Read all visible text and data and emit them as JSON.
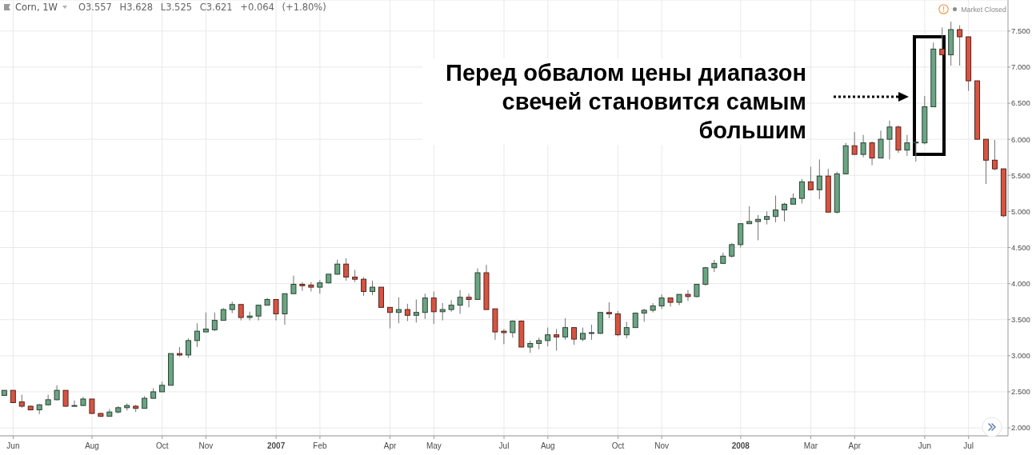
{
  "chart_data": {
    "type": "candlestick",
    "title": "Corn, 1W",
    "annotations": [
      "O3.557 H3.628 L3.525 C3.621 +0.064 (+1.80%)",
      "Market Closed",
      "Перед обвалом цены диапазон свечей становится самым большим"
    ],
    "categories": [
      null,
      "Jun",
      null,
      null,
      null,
      null,
      null,
      null,
      null,
      null,
      "Aug",
      null,
      null,
      null,
      null,
      null,
      null,
      null,
      "Oct",
      null,
      null,
      null,
      null,
      "Nov",
      null,
      null,
      null,
      null,
      null,
      null,
      null,
      "2007",
      null,
      null,
      null,
      null,
      "Feb",
      null,
      null,
      null,
      null,
      null,
      null,
      null,
      "Apr",
      null,
      null,
      null,
      null,
      "May",
      null,
      null,
      null,
      null,
      null,
      null,
      null,
      "Jul",
      null,
      null,
      null,
      null,
      "Aug",
      null,
      null,
      null,
      null,
      null,
      null,
      null,
      "Oct",
      null,
      null,
      null,
      null,
      "Nov",
      null,
      null,
      null,
      null,
      null,
      null,
      null,
      null,
      "2008",
      null,
      null,
      null,
      null,
      null,
      null,
      null,
      "Mar",
      null,
      null,
      null,
      null,
      "Apr",
      null,
      null,
      null,
      null,
      null,
      null,
      null,
      "Jun",
      null,
      null,
      null,
      null,
      "Jul",
      null,
      null,
      null,
      null
    ],
    "ohlc": [
      [
        2.45,
        2.52,
        2.45,
        2.52
      ],
      [
        2.52,
        2.52,
        2.35,
        2.35
      ],
      [
        2.36,
        2.46,
        2.28,
        2.3
      ],
      [
        2.3,
        2.31,
        2.24,
        2.25
      ],
      [
        2.25,
        2.33,
        2.19,
        2.32
      ],
      [
        2.32,
        2.46,
        2.31,
        2.39
      ],
      [
        2.39,
        2.59,
        2.38,
        2.52
      ],
      [
        2.52,
        2.52,
        2.29,
        2.3
      ],
      [
        2.3,
        2.38,
        2.3,
        2.31
      ],
      [
        2.31,
        2.43,
        2.3,
        2.4
      ],
      [
        2.4,
        2.4,
        2.19,
        2.2
      ],
      [
        2.2,
        2.21,
        2.15,
        2.16
      ],
      [
        2.16,
        2.26,
        2.16,
        2.22
      ],
      [
        2.22,
        2.3,
        2.2,
        2.28
      ],
      [
        2.28,
        2.34,
        2.24,
        2.31
      ],
      [
        2.3,
        2.32,
        2.22,
        2.27
      ],
      [
        2.27,
        2.44,
        2.27,
        2.41
      ],
      [
        2.41,
        2.55,
        2.4,
        2.5
      ],
      [
        2.5,
        2.64,
        2.5,
        2.59
      ],
      [
        2.59,
        3.03,
        2.59,
        3.03
      ],
      [
        3.03,
        3.12,
        2.99,
        3.01
      ],
      [
        3.01,
        3.24,
        2.97,
        3.21
      ],
      [
        3.21,
        3.45,
        3.12,
        3.34
      ],
      [
        3.33,
        3.6,
        3.33,
        3.37
      ],
      [
        3.36,
        3.6,
        3.34,
        3.49
      ],
      [
        3.49,
        3.66,
        3.49,
        3.64
      ],
      [
        3.64,
        3.75,
        3.59,
        3.71
      ],
      [
        3.71,
        3.71,
        3.49,
        3.53
      ],
      [
        3.53,
        3.61,
        3.49,
        3.55
      ],
      [
        3.55,
        3.7,
        3.49,
        3.7
      ],
      [
        3.7,
        3.8,
        3.7,
        3.78
      ],
      [
        3.78,
        3.78,
        3.49,
        3.58
      ],
      [
        3.58,
        3.86,
        3.43,
        3.86
      ],
      [
        3.86,
        4.11,
        3.86,
        3.99
      ],
      [
        3.99,
        4.02,
        3.9,
        3.97
      ],
      [
        3.98,
        4.02,
        3.89,
        3.95
      ],
      [
        3.95,
        4.05,
        3.86,
        4.01
      ],
      [
        4.01,
        4.13,
        4.0,
        4.13
      ],
      [
        4.13,
        4.33,
        4.12,
        4.27
      ],
      [
        4.27,
        4.35,
        4.04,
        4.09
      ],
      [
        4.09,
        4.19,
        4.02,
        4.06
      ],
      [
        4.06,
        4.09,
        3.83,
        3.89
      ],
      [
        3.89,
        4.04,
        3.84,
        3.95
      ],
      [
        3.95,
        3.95,
        3.67,
        3.67
      ],
      [
        3.67,
        3.67,
        3.38,
        3.6
      ],
      [
        3.6,
        3.81,
        3.45,
        3.64
      ],
      [
        3.64,
        3.72,
        3.48,
        3.56
      ],
      [
        3.56,
        3.78,
        3.46,
        3.6
      ],
      [
        3.6,
        3.86,
        3.51,
        3.8
      ],
      [
        3.8,
        3.89,
        3.44,
        3.61
      ],
      [
        3.61,
        3.73,
        3.49,
        3.64
      ],
      [
        3.64,
        3.77,
        3.61,
        3.7
      ],
      [
        3.7,
        3.91,
        3.58,
        3.81
      ],
      [
        3.81,
        3.86,
        3.67,
        3.78
      ],
      [
        3.78,
        4.21,
        3.78,
        4.15
      ],
      [
        4.15,
        4.26,
        3.64,
        3.64
      ],
      [
        3.65,
        3.65,
        3.22,
        3.33
      ],
      [
        3.34,
        3.37,
        3.16,
        3.32
      ],
      [
        3.32,
        3.49,
        3.25,
        3.48
      ],
      [
        3.48,
        3.49,
        3.12,
        3.12
      ],
      [
        3.12,
        3.21,
        3.04,
        3.17
      ],
      [
        3.17,
        3.25,
        3.09,
        3.21
      ],
      [
        3.21,
        3.39,
        3.13,
        3.29
      ],
      [
        3.29,
        3.37,
        3.07,
        3.26
      ],
      [
        3.26,
        3.52,
        3.22,
        3.39
      ],
      [
        3.39,
        3.39,
        3.15,
        3.23
      ],
      [
        3.23,
        3.39,
        3.2,
        3.31
      ],
      [
        3.31,
        3.43,
        3.22,
        3.32
      ],
      [
        3.31,
        3.6,
        3.3,
        3.6
      ],
      [
        3.6,
        3.74,
        3.52,
        3.58
      ],
      [
        3.58,
        3.62,
        3.27,
        3.29
      ],
      [
        3.29,
        3.47,
        3.24,
        3.39
      ],
      [
        3.39,
        3.6,
        3.39,
        3.59
      ],
      [
        3.59,
        3.65,
        3.47,
        3.63
      ],
      [
        3.63,
        3.73,
        3.6,
        3.69
      ],
      [
        3.69,
        3.85,
        3.65,
        3.8
      ],
      [
        3.8,
        3.8,
        3.68,
        3.74
      ],
      [
        3.74,
        3.85,
        3.7,
        3.85
      ],
      [
        3.85,
        3.91,
        3.76,
        3.82
      ],
      [
        3.82,
        3.99,
        3.81,
        3.99
      ],
      [
        3.99,
        4.23,
        3.97,
        4.22
      ],
      [
        4.22,
        4.33,
        4.16,
        4.28
      ],
      [
        4.28,
        4.43,
        4.27,
        4.38
      ],
      [
        4.38,
        4.56,
        4.36,
        4.54
      ],
      [
        4.54,
        4.83,
        4.5,
        4.83
      ],
      [
        4.83,
        5.07,
        4.83,
        4.86
      ],
      [
        4.86,
        4.95,
        4.6,
        4.89
      ],
      [
        4.89,
        5.0,
        4.82,
        4.93
      ],
      [
        4.93,
        5.22,
        4.85,
        5.02
      ],
      [
        5.02,
        5.12,
        4.86,
        5.1
      ],
      [
        5.1,
        5.25,
        5.1,
        5.18
      ],
      [
        5.18,
        5.45,
        5.11,
        5.41
      ],
      [
        5.41,
        5.62,
        5.29,
        5.3
      ],
      [
        5.3,
        5.72,
        5.17,
        5.49
      ],
      [
        5.49,
        5.59,
        4.99,
        4.99
      ],
      [
        4.99,
        5.55,
        4.97,
        5.52
      ],
      [
        5.52,
        5.95,
        5.52,
        5.91
      ],
      [
        5.91,
        6.1,
        5.79,
        5.79
      ],
      [
        5.79,
        6.06,
        5.75,
        5.95
      ],
      [
        5.95,
        5.97,
        5.64,
        5.74
      ],
      [
        5.74,
        6.12,
        5.74,
        6.0
      ],
      [
        6.0,
        6.26,
        5.72,
        6.17
      ],
      [
        6.17,
        6.19,
        5.81,
        5.85
      ],
      [
        5.85,
        6.06,
        5.77,
        5.95
      ],
      [
        5.95,
        5.96,
        5.69,
        5.96
      ],
      [
        5.95,
        6.6,
        5.93,
        6.45
      ],
      [
        6.45,
        7.34,
        6.45,
        7.25
      ],
      [
        7.25,
        7.55,
        7.17,
        7.17
      ],
      [
        7.17,
        7.63,
        7.02,
        7.52
      ],
      [
        7.52,
        7.58,
        7.02,
        7.42
      ],
      [
        7.42,
        7.42,
        6.67,
        6.81
      ],
      [
        6.81,
        6.81,
        6.0,
        6.0
      ],
      [
        6.0,
        6.0,
        5.38,
        5.71
      ],
      [
        5.71,
        5.99,
        5.57,
        5.59
      ],
      [
        5.59,
        5.59,
        4.92,
        4.94
      ]
    ],
    "colors": [
      "#6ba583",
      "#d75442",
      "#d75442",
      "#d75442",
      "#6ba583",
      "#6ba583",
      "#6ba583",
      "#d75442",
      "#6ba583",
      "#6ba583",
      "#d75442",
      "#d75442",
      "#6ba583",
      "#6ba583",
      "#6ba583",
      "#d75442",
      "#6ba583",
      "#6ba583",
      "#6ba583",
      "#6ba583",
      "#d75442",
      "#6ba583",
      "#6ba583",
      "#6ba583",
      "#6ba583",
      "#6ba583",
      "#6ba583",
      "#d75442",
      "#6ba583",
      "#6ba583",
      "#6ba583",
      "#d75442",
      "#6ba583",
      "#6ba583",
      "#d75442",
      "#d75442",
      "#6ba583",
      "#6ba583",
      "#6ba583",
      "#d75442",
      "#d75442",
      "#d75442",
      "#6ba583",
      "#d75442",
      "#d75442",
      "#6ba583",
      "#d75442",
      "#6ba583",
      "#6ba583",
      "#d75442",
      "#6ba583",
      "#6ba583",
      "#6ba583",
      "#d75442",
      "#6ba583",
      "#d75442",
      "#d75442",
      "#d75442",
      "#6ba583",
      "#d75442",
      "#6ba583",
      "#6ba583",
      "#6ba583",
      "#d75442",
      "#6ba583",
      "#d75442",
      "#6ba583",
      "#6ba583",
      "#6ba583",
      "#d75442",
      "#d75442",
      "#6ba583",
      "#6ba583",
      "#6ba583",
      "#6ba583",
      "#6ba583",
      "#d75442",
      "#6ba583",
      "#d75442",
      "#6ba583",
      "#6ba583",
      "#6ba583",
      "#6ba583",
      "#6ba583",
      "#6ba583",
      "#6ba583",
      "#6ba583",
      "#6ba583",
      "#6ba583",
      "#6ba583",
      "#6ba583",
      "#6ba583",
      "#d75442",
      "#6ba583",
      "#d75442",
      "#6ba583",
      "#6ba583",
      "#d75442",
      "#6ba583",
      "#d75442",
      "#6ba583",
      "#6ba583",
      "#d75442",
      "#6ba583",
      "#6ba583",
      "#6ba583",
      "#6ba583",
      "#d75442",
      "#6ba583",
      "#d75442",
      "#d75442",
      "#d75442",
      "#d75442",
      "#d75442",
      "#d75442"
    ],
    "ylim": [
      1.89,
      7.93
    ],
    "yticks": [
      {
        "value": 2,
        "label": "2.000"
      },
      {
        "value": 2.5,
        "label": "2.500"
      },
      {
        "value": 3,
        "label": "3.000"
      },
      {
        "value": 3.5,
        "label": "3.500"
      },
      {
        "value": 4,
        "label": "4.000"
      },
      {
        "value": 4.5,
        "label": "4.500"
      },
      {
        "value": 5,
        "label": "5.000"
      },
      {
        "value": 5.5,
        "label": "5.500"
      },
      {
        "value": 6,
        "label": "6.000"
      },
      {
        "value": 6.5,
        "label": "6.500"
      },
      {
        "value": 7,
        "label": "7.000"
      },
      {
        "value": 7.5,
        "label": "7.500"
      }
    ],
    "grid": true
  }
}
